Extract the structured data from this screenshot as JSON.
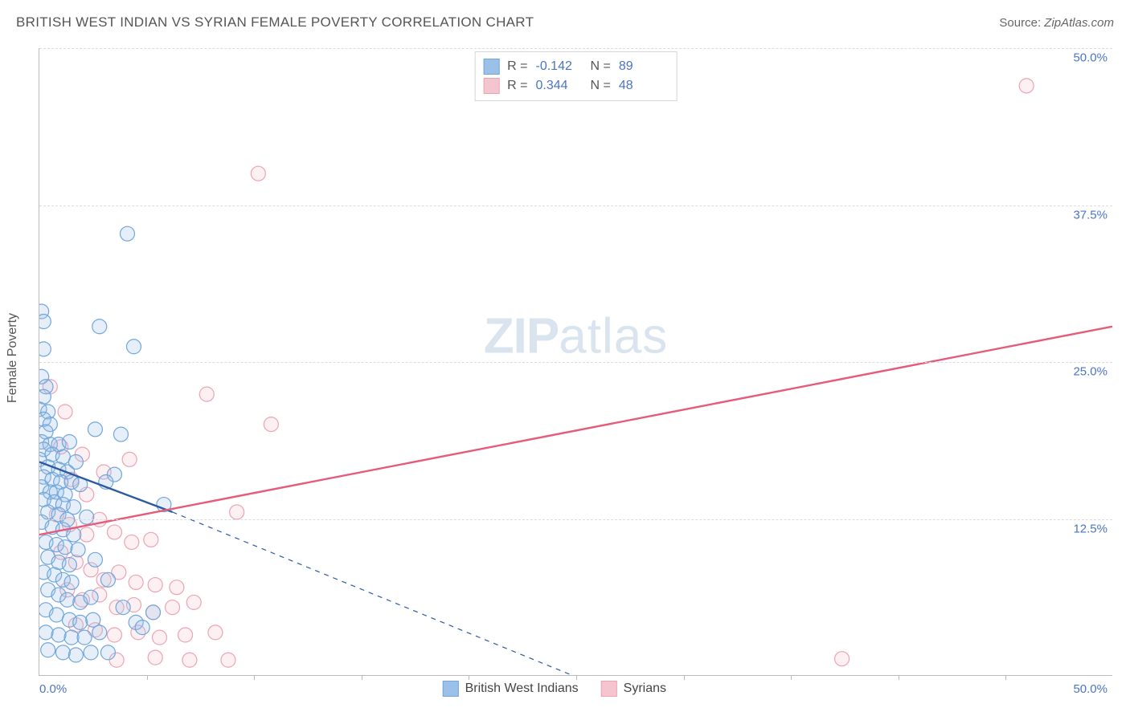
{
  "header": {
    "title": "BRITISH WEST INDIAN VS SYRIAN FEMALE POVERTY CORRELATION CHART",
    "source_prefix": "Source: ",
    "source_name": "ZipAtlas.com"
  },
  "chart": {
    "type": "scatter",
    "watermark_a": "ZIP",
    "watermark_b": "atlas",
    "ylabel": "Female Poverty",
    "xlim": [
      0,
      50
    ],
    "ylim": [
      0,
      50
    ],
    "x_origin_label": "0.0%",
    "x_max_label": "50.0%",
    "y_ticks": [
      12.5,
      25.0,
      37.5,
      50.0
    ],
    "y_tick_labels": [
      "12.5%",
      "25.0%",
      "37.5%",
      "50.0%"
    ],
    "x_ticks": [
      5,
      10,
      15,
      20,
      25,
      30,
      35,
      40,
      45
    ],
    "grid_color": "#dcdcdc",
    "axis_color": "#bbbbbb",
    "tick_label_color": "#4a75c4",
    "background_color": "#ffffff",
    "marker_radius": 9,
    "marker_fill_opacity": 0.25,
    "marker_stroke_width": 1.2,
    "series": {
      "blue": {
        "label": "British West Indians",
        "fill": "#9cc1e8",
        "stroke": "#6fa6dc",
        "r_value": "-0.142",
        "n_value": "89",
        "trend_color": "#2c5aa0",
        "trend_solid": {
          "x1": 0,
          "y1": 17.0,
          "x2": 6.2,
          "y2": 13.0
        },
        "trend_dashed": {
          "x1": 6.2,
          "y1": 13.0,
          "x2": 24.8,
          "y2": 0.0
        },
        "trend_width": 2.4,
        "points": [
          [
            0.1,
            29.0
          ],
          [
            0.2,
            28.2
          ],
          [
            0.2,
            26.0
          ],
          [
            0.1,
            23.8
          ],
          [
            0.3,
            23.0
          ],
          [
            0.2,
            22.2
          ],
          [
            0.0,
            21.2
          ],
          [
            0.4,
            21.0
          ],
          [
            0.2,
            20.4
          ],
          [
            0.5,
            20.0
          ],
          [
            0.3,
            19.4
          ],
          [
            0.1,
            18.6
          ],
          [
            0.5,
            18.4
          ],
          [
            0.9,
            18.4
          ],
          [
            1.4,
            18.6
          ],
          [
            0.2,
            18.0
          ],
          [
            0.6,
            17.6
          ],
          [
            1.1,
            17.4
          ],
          [
            1.7,
            17.0
          ],
          [
            0.0,
            17.2
          ],
          [
            0.4,
            16.6
          ],
          [
            0.9,
            16.4
          ],
          [
            1.3,
            16.2
          ],
          [
            0.2,
            15.8
          ],
          [
            0.6,
            15.6
          ],
          [
            1.0,
            15.4
          ],
          [
            1.5,
            15.4
          ],
          [
            1.9,
            15.2
          ],
          [
            0.1,
            15.0
          ],
          [
            0.5,
            14.6
          ],
          [
            0.8,
            14.6
          ],
          [
            1.2,
            14.4
          ],
          [
            0.2,
            14.0
          ],
          [
            0.7,
            13.8
          ],
          [
            1.1,
            13.6
          ],
          [
            1.6,
            13.4
          ],
          [
            0.4,
            13.0
          ],
          [
            0.9,
            12.8
          ],
          [
            1.3,
            12.4
          ],
          [
            0.1,
            12.2
          ],
          [
            0.6,
            11.8
          ],
          [
            1.1,
            11.6
          ],
          [
            1.6,
            11.2
          ],
          [
            0.3,
            10.6
          ],
          [
            0.8,
            10.4
          ],
          [
            1.2,
            10.2
          ],
          [
            1.8,
            10.0
          ],
          [
            0.4,
            9.4
          ],
          [
            0.9,
            9.0
          ],
          [
            1.4,
            8.8
          ],
          [
            0.2,
            8.2
          ],
          [
            0.7,
            8.0
          ],
          [
            1.1,
            7.6
          ],
          [
            1.5,
            7.4
          ],
          [
            0.4,
            6.8
          ],
          [
            0.9,
            6.4
          ],
          [
            1.3,
            6.0
          ],
          [
            1.9,
            5.8
          ],
          [
            2.4,
            6.2
          ],
          [
            0.3,
            5.2
          ],
          [
            0.8,
            4.8
          ],
          [
            1.4,
            4.4
          ],
          [
            1.9,
            4.2
          ],
          [
            2.5,
            4.4
          ],
          [
            0.3,
            3.4
          ],
          [
            0.9,
            3.2
          ],
          [
            1.5,
            3.0
          ],
          [
            2.1,
            3.0
          ],
          [
            2.8,
            3.4
          ],
          [
            0.4,
            2.0
          ],
          [
            1.1,
            1.8
          ],
          [
            1.7,
            1.6
          ],
          [
            2.4,
            1.8
          ],
          [
            3.2,
            1.8
          ],
          [
            4.1,
            35.2
          ],
          [
            4.4,
            26.2
          ],
          [
            2.8,
            27.8
          ],
          [
            3.8,
            19.2
          ],
          [
            3.5,
            16.0
          ],
          [
            2.6,
            19.6
          ],
          [
            3.1,
            15.4
          ],
          [
            2.2,
            12.6
          ],
          [
            2.6,
            9.2
          ],
          [
            3.2,
            7.6
          ],
          [
            3.9,
            5.4
          ],
          [
            4.5,
            4.2
          ],
          [
            4.8,
            3.8
          ],
          [
            5.3,
            5.0
          ],
          [
            5.8,
            13.6
          ]
        ]
      },
      "pink": {
        "label": "Syrians",
        "fill": "#f5c5cf",
        "stroke": "#eda3b3",
        "r_value": "0.344",
        "n_value": "48",
        "trend_color": "#e65a7a",
        "trend_solid": {
          "x1": 0,
          "y1": 11.2,
          "x2": 50,
          "y2": 27.8
        },
        "trend_width": 2.4,
        "points": [
          [
            0.5,
            23.0
          ],
          [
            1.2,
            21.0
          ],
          [
            1.0,
            18.2
          ],
          [
            2.0,
            17.6
          ],
          [
            1.5,
            15.6
          ],
          [
            2.2,
            14.4
          ],
          [
            3.0,
            16.2
          ],
          [
            4.2,
            17.2
          ],
          [
            0.8,
            12.8
          ],
          [
            1.4,
            12.0
          ],
          [
            2.2,
            11.2
          ],
          [
            2.8,
            12.4
          ],
          [
            3.5,
            11.4
          ],
          [
            4.3,
            10.6
          ],
          [
            5.2,
            10.8
          ],
          [
            1.0,
            9.8
          ],
          [
            1.7,
            9.0
          ],
          [
            2.4,
            8.4
          ],
          [
            3.0,
            7.6
          ],
          [
            3.7,
            8.2
          ],
          [
            4.5,
            7.4
          ],
          [
            5.4,
            7.2
          ],
          [
            6.4,
            7.0
          ],
          [
            1.3,
            6.8
          ],
          [
            2.0,
            6.0
          ],
          [
            2.8,
            6.4
          ],
          [
            3.6,
            5.4
          ],
          [
            4.4,
            5.6
          ],
          [
            5.3,
            5.0
          ],
          [
            6.2,
            5.4
          ],
          [
            7.2,
            5.8
          ],
          [
            1.7,
            4.0
          ],
          [
            2.6,
            3.6
          ],
          [
            3.5,
            3.2
          ],
          [
            4.6,
            3.4
          ],
          [
            5.6,
            3.0
          ],
          [
            6.8,
            3.2
          ],
          [
            8.2,
            3.4
          ],
          [
            3.6,
            1.2
          ],
          [
            5.4,
            1.4
          ],
          [
            7.0,
            1.2
          ],
          [
            8.8,
            1.2
          ],
          [
            7.8,
            22.4
          ],
          [
            9.2,
            13.0
          ],
          [
            10.8,
            20.0
          ],
          [
            10.2,
            40.0
          ],
          [
            37.4,
            1.3
          ],
          [
            46.0,
            47.0
          ]
        ]
      }
    }
  },
  "legend_top_label_R": "R = ",
  "legend_top_label_N": "N = "
}
